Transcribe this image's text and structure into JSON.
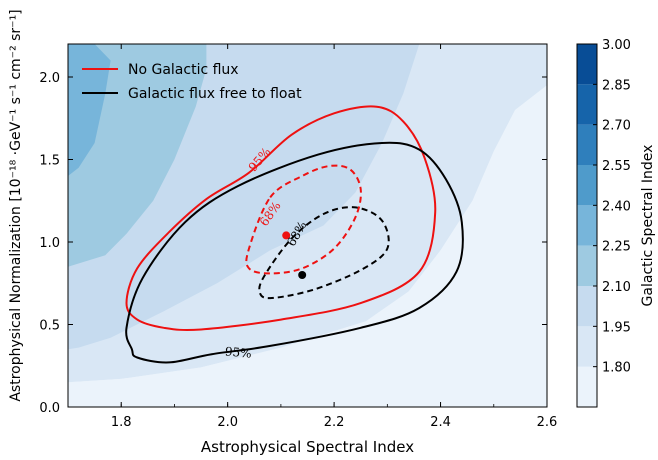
{
  "chart_data": {
    "type": "contour",
    "xlabel": "Astrophysical Spectral Index",
    "ylabel": "Astrophysical Normalization [10⁻¹⁸ ·GeV⁻¹ s⁻¹ cm⁻² sr⁻¹]",
    "xlim": [
      1.7,
      2.6
    ],
    "ylim": [
      0.0,
      2.2
    ],
    "xticks": [
      "1.8",
      "2.0",
      "2.2",
      "2.4",
      "2.6"
    ],
    "yticks": [
      "0.0",
      "0.5",
      "1.0",
      "1.5",
      "2.0"
    ],
    "colorbar": {
      "label": "Galactic Spectral Index",
      "levels": [
        1.65,
        1.8,
        1.95,
        2.1,
        2.25,
        2.4,
        2.55,
        2.7,
        2.85,
        3.0
      ],
      "ticks": [
        "1.80",
        "1.95",
        "2.10",
        "2.25",
        "2.40",
        "2.55",
        "2.70",
        "2.85",
        "3.00"
      ],
      "colors": [
        "#ebf3fb",
        "#d9e7f5",
        "#c6dbef",
        "#9ecae1",
        "#77b5da",
        "#4f9bcb",
        "#2f7fbc",
        "#1664aa",
        "#084d96"
      ]
    },
    "background_bands": [
      {
        "level": 2.4,
        "color": "#77b5da",
        "points": [
          [
            1.7,
            2.2
          ],
          [
            1.75,
            2.2
          ],
          [
            1.78,
            2.1
          ],
          [
            1.77,
            1.9
          ],
          [
            1.75,
            1.6
          ],
          [
            1.72,
            1.45
          ],
          [
            1.7,
            1.4
          ]
        ]
      },
      {
        "level": 2.25,
        "color": "#9ecae1",
        "points": [
          [
            1.7,
            2.2
          ],
          [
            1.96,
            2.2
          ],
          [
            1.96,
            2.05
          ],
          [
            1.94,
            1.82
          ],
          [
            1.9,
            1.5
          ],
          [
            1.86,
            1.25
          ],
          [
            1.81,
            1.05
          ],
          [
            1.77,
            0.92
          ],
          [
            1.7,
            0.85
          ]
        ]
      },
      {
        "level": 2.1,
        "color": "#c6dbef",
        "points": [
          [
            1.7,
            2.2
          ],
          [
            2.36,
            2.2
          ],
          [
            2.33,
            1.9
          ],
          [
            2.29,
            1.6
          ],
          [
            2.24,
            1.3
          ],
          [
            2.18,
            1.1
          ],
          [
            2.08,
            0.95
          ],
          [
            1.98,
            0.75
          ],
          [
            1.88,
            0.58
          ],
          [
            1.78,
            0.42
          ],
          [
            1.72,
            0.36
          ],
          [
            1.7,
            0.35
          ]
        ]
      },
      {
        "level": 1.95,
        "color": "#d9e7f5",
        "points": [
          [
            1.7,
            0.35
          ],
          [
            1.7,
            2.2
          ],
          [
            2.6,
            2.2
          ],
          [
            2.6,
            1.95
          ],
          [
            2.54,
            1.8
          ],
          [
            2.5,
            1.55
          ],
          [
            2.46,
            1.25
          ],
          [
            2.4,
            0.95
          ],
          [
            2.34,
            0.7
          ],
          [
            2.26,
            0.52
          ],
          [
            2.1,
            0.36
          ],
          [
            1.95,
            0.24
          ],
          [
            1.8,
            0.17
          ],
          [
            1.7,
            0.15
          ]
        ]
      },
      {
        "level": 1.8,
        "color": "#ebf3fb",
        "points": [
          [
            1.7,
            0.0
          ],
          [
            2.6,
            0.0
          ],
          [
            2.6,
            1.95
          ],
          [
            2.54,
            1.8
          ],
          [
            2.5,
            1.55
          ],
          [
            2.46,
            1.25
          ],
          [
            2.4,
            0.95
          ],
          [
            2.34,
            0.7
          ],
          [
            2.26,
            0.52
          ],
          [
            2.1,
            0.36
          ],
          [
            1.95,
            0.24
          ],
          [
            1.8,
            0.17
          ],
          [
            1.7,
            0.15
          ]
        ]
      }
    ],
    "series": [
      {
        "name": "No Galactic flux",
        "color": "#ee1111",
        "best_fit": [
          2.11,
          1.04
        ],
        "contours": [
          {
            "label": "68%",
            "dashed": true,
            "label_at": [
              2.08,
              1.17
            ],
            "label_angle": -55,
            "points": [
              [
                2.08,
                1.27
              ],
              [
                2.14,
                1.4
              ],
              [
                2.19,
                1.46
              ],
              [
                2.23,
                1.44
              ],
              [
                2.25,
                1.32
              ],
              [
                2.24,
                1.15
              ],
              [
                2.2,
                0.96
              ],
              [
                2.14,
                0.84
              ],
              [
                2.08,
                0.81
              ],
              [
                2.04,
                0.84
              ],
              [
                2.04,
                0.96
              ]
            ]
          },
          {
            "label": "95%",
            "dashed": false,
            "label_at": [
              2.06,
              1.5
            ],
            "label_angle": -50,
            "points": [
              [
                2.04,
                1.42
              ],
              [
                1.96,
                1.26
              ],
              [
                1.89,
                1.06
              ],
              [
                1.83,
                0.84
              ],
              [
                1.81,
                0.63
              ],
              [
                1.83,
                0.53
              ],
              [
                1.88,
                0.48
              ],
              [
                1.95,
                0.47
              ],
              [
                2.1,
                0.53
              ],
              [
                2.25,
                0.63
              ],
              [
                2.36,
                0.82
              ],
              [
                2.39,
                1.18
              ],
              [
                2.37,
                1.51
              ],
              [
                2.33,
                1.73
              ],
              [
                2.28,
                1.82
              ],
              [
                2.2,
                1.78
              ],
              [
                2.12,
                1.65
              ]
            ]
          }
        ]
      },
      {
        "name": "Galactic flux free to float",
        "color": "#000000",
        "best_fit": [
          2.14,
          0.8
        ],
        "contours": [
          {
            "label": "68%",
            "dashed": true,
            "label_at": [
              2.13,
              1.05
            ],
            "label_angle": -60,
            "points": [
              [
                2.12,
                1.02
              ],
              [
                2.18,
                1.17
              ],
              [
                2.24,
                1.21
              ],
              [
                2.29,
                1.13
              ],
              [
                2.3,
                0.96
              ],
              [
                2.25,
                0.83
              ],
              [
                2.16,
                0.71
              ],
              [
                2.08,
                0.66
              ],
              [
                2.06,
                0.7
              ],
              [
                2.07,
                0.8
              ]
            ]
          },
          {
            "label": "95%",
            "dashed": false,
            "label_at": [
              2.02,
              0.33
            ],
            "label_angle": 5,
            "points": [
              [
                2.08,
                0.37
              ],
              [
                2.25,
                0.48
              ],
              [
                2.36,
                0.6
              ],
              [
                2.43,
                0.82
              ],
              [
                2.44,
                1.12
              ],
              [
                2.41,
                1.38
              ],
              [
                2.36,
                1.56
              ],
              [
                2.29,
                1.6
              ],
              [
                2.17,
                1.53
              ],
              [
                2.02,
                1.34
              ],
              [
                1.92,
                1.12
              ],
              [
                1.84,
                0.78
              ],
              [
                1.81,
                0.48
              ],
              [
                1.82,
                0.35
              ],
              [
                1.83,
                0.3
              ],
              [
                1.89,
                0.27
              ],
              [
                1.97,
                0.32
              ]
            ]
          }
        ]
      }
    ],
    "legend": {
      "placement": "top-left",
      "entries": [
        "No Galactic flux",
        "Galactic flux free to float"
      ]
    }
  }
}
